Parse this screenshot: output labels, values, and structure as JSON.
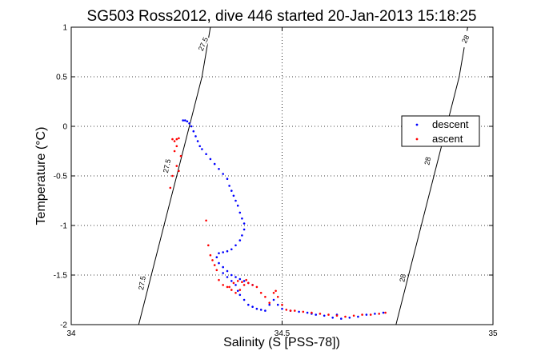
{
  "chart_data": {
    "type": "scatter",
    "title": "SG503 Ross2012, dive 446 started 20-Jan-2013 15:18:25",
    "xlabel": "Salinity (S [PSS-78])",
    "ylabel": "Temperature (°C)",
    "xlim": [
      34,
      35
    ],
    "ylim": [
      -2,
      1
    ],
    "xticks": [
      34,
      34.5,
      35
    ],
    "xtick_labels": [
      "34",
      "34.5",
      "35"
    ],
    "yticks": [
      -2,
      -1.5,
      -1,
      -0.5,
      0,
      0.5,
      1
    ],
    "ytick_labels": [
      "-2",
      "-1.5",
      "-1",
      "-0.5",
      "0",
      "0.5",
      "1"
    ],
    "grid": true,
    "legend_position": "right",
    "density_contours": [
      {
        "label": "27.5",
        "points": [
          [
            34.16,
            -2
          ],
          [
            34.19,
            -1.5
          ],
          [
            34.22,
            -1
          ],
          [
            34.25,
            -0.5
          ],
          [
            34.28,
            0
          ],
          [
            34.31,
            0.5
          ],
          [
            34.33,
            1
          ]
        ]
      },
      {
        "label": "28",
        "points": [
          [
            34.77,
            -2
          ],
          [
            34.8,
            -1.5
          ],
          [
            34.83,
            -1
          ],
          [
            34.86,
            -0.5
          ],
          [
            34.89,
            0
          ],
          [
            34.92,
            0.5
          ],
          [
            34.94,
            1
          ]
        ]
      }
    ],
    "contour_label_positions": [
      {
        "label": "27.5",
        "at": [
          34.313,
          0.83
        ],
        "angle": -66
      },
      {
        "label": "27.5",
        "at": [
          34.227,
          -0.4
        ],
        "angle": -78
      },
      {
        "label": "27.5",
        "at": [
          34.168,
          -1.58
        ],
        "angle": -80
      },
      {
        "label": "28",
        "at": [
          34.935,
          0.88
        ],
        "angle": -63
      },
      {
        "label": "28",
        "at": [
          34.845,
          -0.35
        ],
        "angle": -78
      },
      {
        "label": "28",
        "at": [
          34.786,
          -1.53
        ],
        "angle": -80
      }
    ],
    "series": [
      {
        "name": "descent",
        "color": "#0000ff",
        "points": [
          [
            34.265,
            0.06
          ],
          [
            34.27,
            0.06
          ],
          [
            34.275,
            0.05
          ],
          [
            34.28,
            0.03
          ],
          [
            34.285,
            0.0
          ],
          [
            34.29,
            -0.05
          ],
          [
            34.295,
            -0.1
          ],
          [
            34.3,
            -0.15
          ],
          [
            34.305,
            -0.2
          ],
          [
            34.31,
            -0.23
          ],
          [
            34.32,
            -0.28
          ],
          [
            34.33,
            -0.33
          ],
          [
            34.34,
            -0.38
          ],
          [
            34.35,
            -0.43
          ],
          [
            34.36,
            -0.48
          ],
          [
            34.37,
            -0.53
          ],
          [
            34.375,
            -0.6
          ],
          [
            34.38,
            -0.65
          ],
          [
            34.385,
            -0.7
          ],
          [
            34.39,
            -0.75
          ],
          [
            34.395,
            -0.8
          ],
          [
            34.4,
            -0.87
          ],
          [
            34.405,
            -0.93
          ],
          [
            34.41,
            -0.98
          ],
          [
            34.41,
            -1.04
          ],
          [
            34.405,
            -1.1
          ],
          [
            34.4,
            -1.15
          ],
          [
            34.39,
            -1.2
          ],
          [
            34.38,
            -1.24
          ],
          [
            34.37,
            -1.26
          ],
          [
            34.36,
            -1.27
          ],
          [
            34.35,
            -1.28
          ],
          [
            34.345,
            -1.32
          ],
          [
            34.35,
            -1.38
          ],
          [
            34.36,
            -1.42
          ],
          [
            34.37,
            -1.46
          ],
          [
            34.38,
            -1.5
          ],
          [
            34.39,
            -1.52
          ],
          [
            34.4,
            -1.54
          ],
          [
            34.41,
            -1.56
          ],
          [
            34.42,
            -1.58
          ],
          [
            34.43,
            -1.6
          ],
          [
            34.36,
            -1.48
          ],
          [
            34.37,
            -1.52
          ],
          [
            34.38,
            -1.56
          ],
          [
            34.39,
            -1.6
          ],
          [
            34.395,
            -1.66
          ],
          [
            34.4,
            -1.7
          ],
          [
            34.41,
            -1.75
          ],
          [
            34.42,
            -1.8
          ],
          [
            34.43,
            -1.82
          ],
          [
            34.44,
            -1.84
          ],
          [
            34.45,
            -1.85
          ],
          [
            34.46,
            -1.86
          ],
          [
            34.47,
            -1.8
          ],
          [
            34.48,
            -1.75
          ],
          [
            34.49,
            -1.8
          ],
          [
            34.5,
            -1.84
          ],
          [
            34.52,
            -1.86
          ],
          [
            34.54,
            -1.87
          ],
          [
            34.56,
            -1.88
          ],
          [
            34.58,
            -1.9
          ],
          [
            34.6,
            -1.91
          ],
          [
            34.62,
            -1.93
          ],
          [
            34.64,
            -1.94
          ],
          [
            34.66,
            -1.93
          ],
          [
            34.68,
            -1.92
          ],
          [
            34.7,
            -1.9
          ],
          [
            34.72,
            -1.89
          ],
          [
            34.74,
            -1.88
          ],
          [
            34.63,
            -1.9
          ],
          [
            34.57,
            -1.89
          ]
        ]
      },
      {
        "name": "ascent",
        "color": "#ff0000",
        "points": [
          [
            34.24,
            -0.13
          ],
          [
            34.245,
            -0.15
          ],
          [
            34.25,
            -0.13
          ],
          [
            34.255,
            -0.12
          ],
          [
            34.25,
            -0.2
          ],
          [
            34.245,
            -0.25
          ],
          [
            34.26,
            -0.3
          ],
          [
            34.25,
            -0.4
          ],
          [
            34.24,
            -0.5
          ],
          [
            34.235,
            -0.62
          ],
          [
            34.255,
            -0.45
          ],
          [
            34.32,
            -0.95
          ],
          [
            34.325,
            -1.2
          ],
          [
            34.33,
            -1.3
          ],
          [
            34.335,
            -1.35
          ],
          [
            34.34,
            -1.4
          ],
          [
            34.345,
            -1.45
          ],
          [
            34.35,
            -1.55
          ],
          [
            34.36,
            -1.6
          ],
          [
            34.37,
            -1.62
          ],
          [
            34.38,
            -1.65
          ],
          [
            34.39,
            -1.68
          ],
          [
            34.4,
            -1.65
          ],
          [
            34.41,
            -1.6
          ],
          [
            34.42,
            -1.58
          ],
          [
            34.43,
            -1.6
          ],
          [
            34.44,
            -1.62
          ],
          [
            34.45,
            -1.68
          ],
          [
            34.46,
            -1.72
          ],
          [
            34.47,
            -1.78
          ],
          [
            34.48,
            -1.68
          ],
          [
            34.485,
            -1.66
          ],
          [
            34.49,
            -1.72
          ],
          [
            34.5,
            -1.8
          ],
          [
            34.51,
            -1.85
          ],
          [
            34.52,
            -1.86
          ],
          [
            34.53,
            -1.86
          ],
          [
            34.55,
            -1.87
          ],
          [
            34.57,
            -1.88
          ],
          [
            34.59,
            -1.89
          ],
          [
            34.61,
            -1.9
          ],
          [
            34.63,
            -1.91
          ],
          [
            34.65,
            -1.92
          ],
          [
            34.67,
            -1.91
          ],
          [
            34.69,
            -1.9
          ],
          [
            34.71,
            -1.9
          ],
          [
            34.73,
            -1.89
          ],
          [
            34.745,
            -1.88
          ],
          [
            34.375,
            -1.62
          ],
          [
            34.385,
            -1.58
          ],
          [
            34.395,
            -1.56
          ],
          [
            34.405,
            -1.57
          ],
          [
            34.415,
            -1.55
          ]
        ]
      }
    ]
  }
}
